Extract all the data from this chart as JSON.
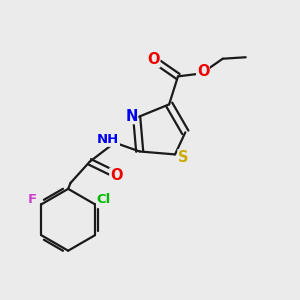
{
  "bg_color": "#ebebeb",
  "bond_color": "#1a1a1a",
  "bond_width": 1.6,
  "atom_colors": {
    "N": "#0000ee",
    "S": "#ccaa00",
    "O": "#ee0000",
    "Cl": "#00bb00",
    "F": "#cc44cc"
  },
  "font_size": 9.5,
  "figsize": [
    3.0,
    3.0
  ],
  "dpi": 100,
  "xlim": [
    0,
    10
  ],
  "ylim": [
    0,
    10
  ]
}
